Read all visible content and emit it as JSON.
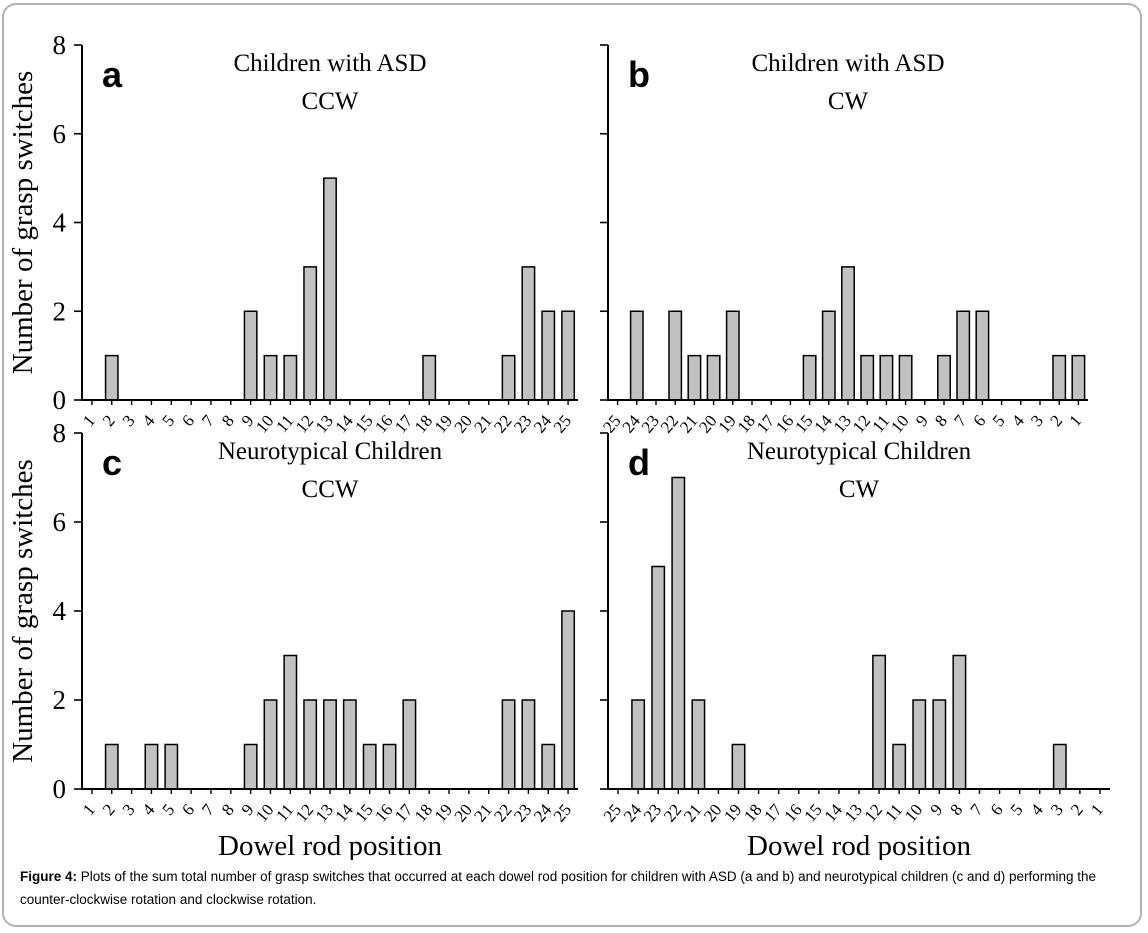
{
  "figure": {
    "caption_label": "Figure 4:",
    "caption_text": " Plots of the sum total number of grasp switches that occurred at each dowel rod position for children with ASD (a and b) and neurotypical children (c and d) performing the counter-clockwise rotation and clockwise rotation."
  },
  "colors": {
    "bar_fill": "#c1c1c1",
    "bar_stroke": "#000000",
    "axis": "#000000",
    "frame_border": "#b2b2b2",
    "background": "#ffffff"
  },
  "axis_text": {
    "ylabel": "Number of grasp switches",
    "xlabel": "Dowel rod position"
  },
  "chart_data": [
    {
      "type": "bar",
      "panel": "a",
      "title": "Children with ASD",
      "subtitle": "CCW",
      "ylabel": "Number of grasp switches",
      "xlabel": null,
      "ylim": [
        0,
        8
      ],
      "yticks": [
        0,
        2,
        4,
        6,
        8
      ],
      "ytick_labels_shown": true,
      "categories": [
        "1",
        "2",
        "3",
        "4",
        "5",
        "6",
        "7",
        "8",
        "9",
        "10",
        "11",
        "12",
        "13",
        "14",
        "15",
        "16",
        "17",
        "18",
        "19",
        "20",
        "21",
        "22",
        "23",
        "24",
        "25"
      ],
      "values": [
        0,
        1,
        0,
        0,
        0,
        0,
        0,
        0,
        2,
        1,
        1,
        3,
        5,
        0,
        0,
        0,
        0,
        1,
        0,
        0,
        0,
        1,
        3,
        2,
        2
      ]
    },
    {
      "type": "bar",
      "panel": "b",
      "title": "Children with ASD",
      "subtitle": "CW",
      "ylabel": null,
      "xlabel": null,
      "ylim": [
        0,
        8
      ],
      "yticks": [
        0,
        2,
        4,
        6,
        8
      ],
      "ytick_labels_shown": false,
      "categories": [
        "25",
        "24",
        "23",
        "22",
        "21",
        "20",
        "19",
        "18",
        "17",
        "16",
        "15",
        "14",
        "13",
        "12",
        "11",
        "10",
        "9",
        "8",
        "7",
        "6",
        "5",
        "4",
        "3",
        "2",
        "1"
      ],
      "values": [
        0,
        2,
        0,
        2,
        1,
        1,
        2,
        0,
        0,
        0,
        1,
        2,
        3,
        1,
        1,
        1,
        0,
        1,
        2,
        2,
        0,
        0,
        0,
        1,
        1
      ]
    },
    {
      "type": "bar",
      "panel": "c",
      "title": "Neurotypical Children",
      "subtitle": "CCW",
      "ylabel": "Number of grasp switches",
      "xlabel": "Dowel rod position",
      "ylim": [
        0,
        8
      ],
      "yticks": [
        0,
        2,
        4,
        6,
        8
      ],
      "ytick_labels_shown": true,
      "categories": [
        "1",
        "2",
        "3",
        "4",
        "5",
        "6",
        "7",
        "8",
        "9",
        "10",
        "11",
        "12",
        "13",
        "14",
        "15",
        "16",
        "17",
        "18",
        "19",
        "20",
        "21",
        "22",
        "23",
        "24",
        "25"
      ],
      "values": [
        0,
        1,
        0,
        1,
        1,
        0,
        0,
        0,
        1,
        2,
        3,
        2,
        2,
        2,
        1,
        1,
        2,
        0,
        0,
        0,
        0,
        2,
        2,
        1,
        4
      ]
    },
    {
      "type": "bar",
      "panel": "d",
      "title": "Neurotypical Children",
      "subtitle": "CW",
      "ylabel": null,
      "xlabel": "Dowel rod position",
      "ylim": [
        0,
        8
      ],
      "yticks": [
        0,
        2,
        4,
        6,
        8
      ],
      "ytick_labels_shown": false,
      "categories": [
        "25",
        "24",
        "23",
        "22",
        "21",
        "20",
        "19",
        "18",
        "17",
        "16",
        "15",
        "14",
        "13",
        "12",
        "11",
        "10",
        "9",
        "8",
        "7",
        "6",
        "5",
        "4",
        "3",
        "2",
        "1"
      ],
      "values": [
        0,
        2,
        5,
        7,
        2,
        0,
        1,
        0,
        0,
        0,
        0,
        0,
        0,
        3,
        1,
        2,
        2,
        3,
        0,
        0,
        0,
        0,
        1,
        0,
        0
      ]
    }
  ]
}
